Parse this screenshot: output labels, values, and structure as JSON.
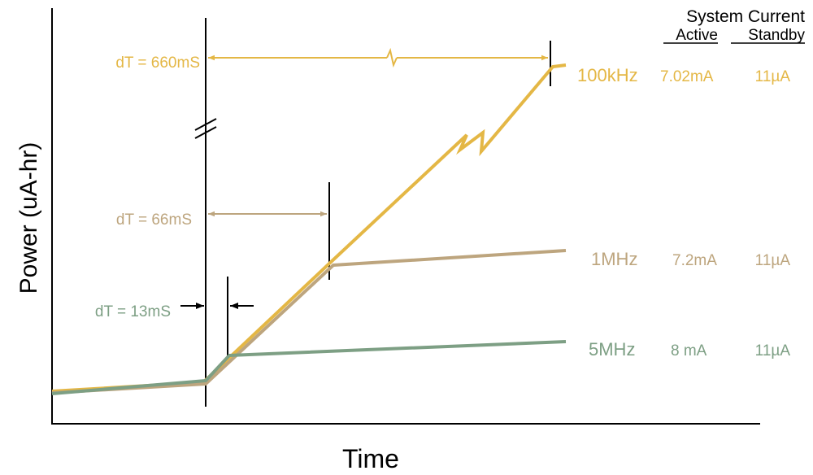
{
  "colors": {
    "gold": "#E4B745",
    "tan": "#BDA57E",
    "green": "#7D9F84",
    "black": "#000000"
  },
  "axes": {
    "y_label": "Power (uA-hr)",
    "x_label": "Time"
  },
  "header": {
    "title": "System Current",
    "col_active": "Active",
    "col_standby": "Standby"
  },
  "series": [
    {
      "freq": "100kHz",
      "active": "7.02mA",
      "standby": "11µA"
    },
    {
      "freq": "1MHz",
      "active": "7.2mA",
      "standby": "11µA"
    },
    {
      "freq": "5MHz",
      "active": "8 mA",
      "standby": "11µA"
    }
  ],
  "intervals": [
    {
      "label": "dT = 660mS"
    },
    {
      "label": "dT = 66mS"
    },
    {
      "label": "dT = 13mS"
    }
  ]
}
